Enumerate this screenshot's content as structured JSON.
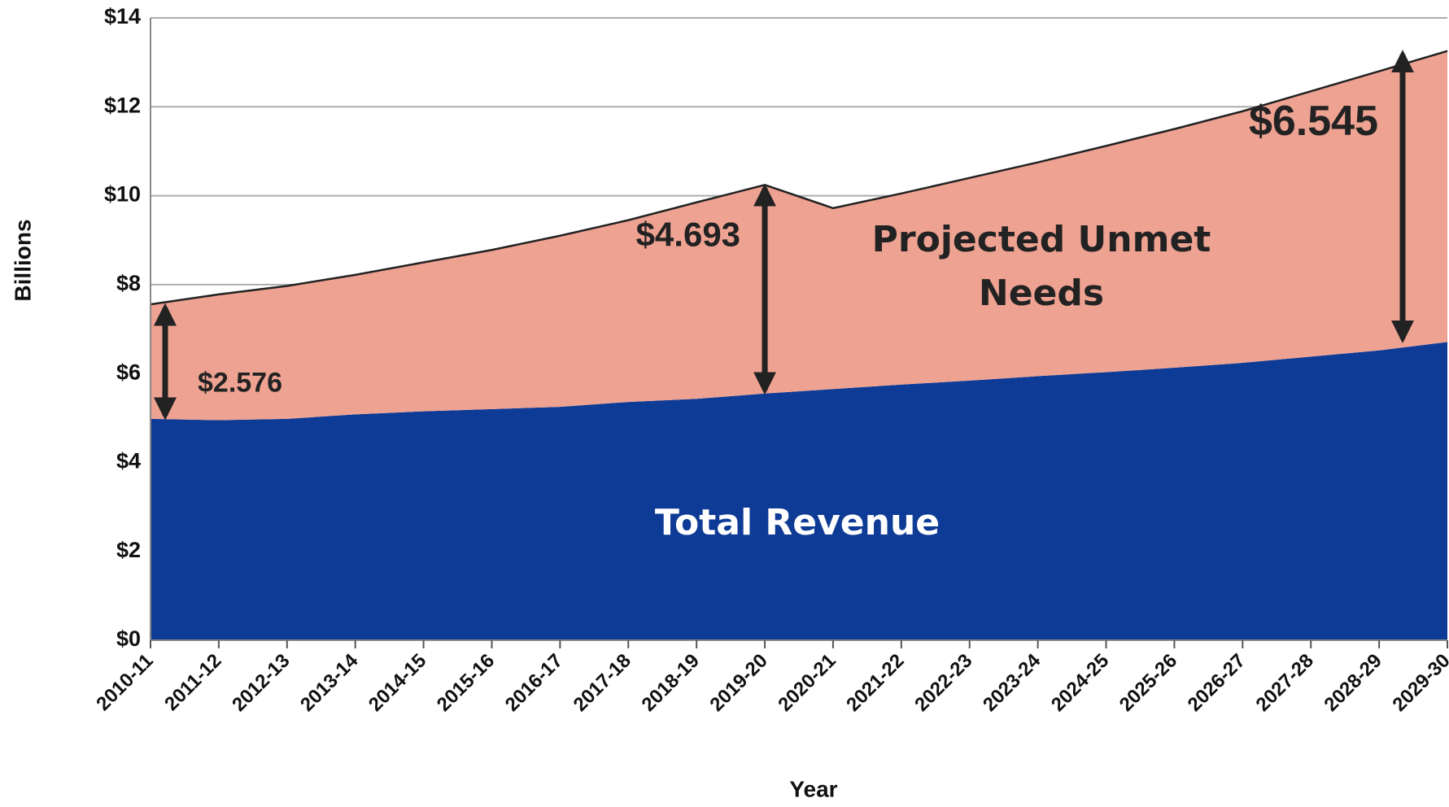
{
  "chart_data": {
    "type": "stacked-area",
    "x_label": "Year",
    "y_label": "Billions",
    "categories": [
      "2010-11",
      "2011-12",
      "2012-13",
      "2013-14",
      "2014-15",
      "2015-16",
      "2016-17",
      "2017-18",
      "2018-19",
      "2019-20",
      "2020-21",
      "2021-22",
      "2022-23",
      "2023-24",
      "2024-25",
      "2025-26",
      "2026-27",
      "2027-28",
      "2028-29",
      "2029-30"
    ],
    "series": [
      {
        "name": "Total Revenue",
        "color": "#0d3b96",
        "values": [
          4.98,
          4.95,
          4.98,
          5.08,
          5.15,
          5.2,
          5.25,
          5.36,
          5.43,
          5.55,
          5.65,
          5.75,
          5.84,
          5.94,
          6.03,
          6.13,
          6.24,
          6.38,
          6.52,
          6.71
        ]
      },
      {
        "name": "Projected Unmet Needs",
        "color": "#eea292",
        "values": [
          2.576,
          2.83,
          2.99,
          3.14,
          3.35,
          3.58,
          3.85,
          4.09,
          4.42,
          4.693,
          4.07,
          4.3,
          4.56,
          4.81,
          5.09,
          5.37,
          5.66,
          5.97,
          6.28,
          6.545
        ],
        "value_labels": [
          "$2.576",
          null,
          null,
          null,
          null,
          null,
          null,
          null,
          null,
          "$4.693",
          null,
          null,
          null,
          null,
          null,
          null,
          null,
          null,
          null,
          "$6.545"
        ]
      }
    ],
    "ylim": [
      0,
      14
    ],
    "yticks": [
      {
        "value": 0,
        "label": "$0"
      },
      {
        "value": 2,
        "label": "$2"
      },
      {
        "value": 4,
        "label": "$4"
      },
      {
        "value": 6,
        "label": "$6"
      },
      {
        "value": 8,
        "label": "$8"
      },
      {
        "value": 10,
        "label": "$10"
      },
      {
        "value": 12,
        "label": "$12"
      },
      {
        "value": 14,
        "label": "$14"
      }
    ],
    "grid": true
  }
}
